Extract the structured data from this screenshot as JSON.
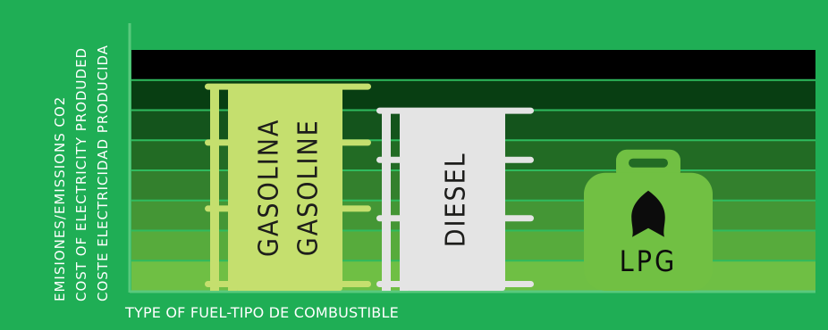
{
  "chart_data": {
    "type": "bar",
    "xlabel": "TYPE OF FUEL-TIPO DE COMBUSTIBLE",
    "ylabel_lines": [
      "EMISIONES/EMISSIONS CO2",
      "COST OF ELECTRICITY PRODUDED",
      "COSTE ELECTRICIDAD PRODUCIDA"
    ],
    "ylim": [
      0,
      7
    ],
    "categories": [
      "GASOLINA GASOLINE",
      "DIESEL",
      "LPG"
    ],
    "bars": [
      {
        "labels": [
          "GASOLINA",
          "GASOLINE"
        ],
        "value": 6,
        "icon": "fuel-barrel",
        "color": "#c5df6e"
      },
      {
        "labels": [
          "DIESEL"
        ],
        "value": 5.3,
        "icon": "fuel-barrel",
        "color": "#e4e4e4"
      },
      {
        "labels": [
          "LPG"
        ],
        "value": 4,
        "icon": "gas-cylinder-with-flame",
        "color": "#71c043"
      }
    ],
    "band_colors": [
      "#6fbf44",
      "#57ab3c",
      "#449635",
      "#33802d",
      "#226b24",
      "#14541c",
      "#083e12",
      "#000000"
    ]
  }
}
